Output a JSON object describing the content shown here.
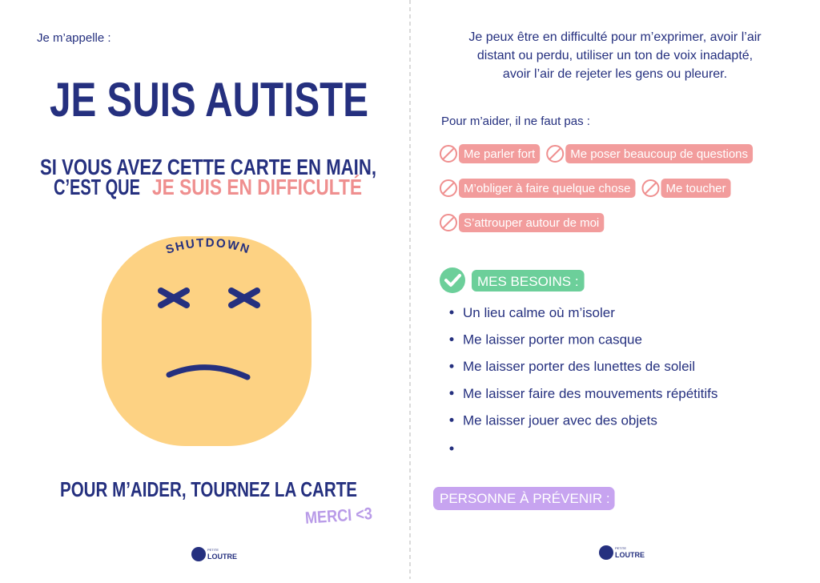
{
  "left": {
    "name_label": "Je m’appelle :",
    "title": "JE SUIS AUTISTE",
    "subtitle_line1": "SI VOUS AVEZ CETTE CARTE EN MAIN,",
    "subtitle_prefix": "C’EST QUE",
    "subtitle_highlight": "JE SUIS EN DIFFICULTÉ",
    "face_label": "SHUTDOWN",
    "footer": "POUR M’AIDER, TOURNEZ LA CARTE",
    "thanks": "MERCI <3",
    "logo": {
      "top": "PETITE",
      "bottom": "LOUTRE"
    }
  },
  "right": {
    "intro": [
      "Je peux être en difficulté pour m’exprimer, avoir l’air",
      "distant ou perdu, utiliser un ton de voix inadapté,",
      "avoir l’air de rejeter les gens ou pleurer."
    ],
    "dont_label": "Pour m’aider, il ne faut pas :",
    "dont_items": [
      "Me parler fort",
      "Me poser beaucoup de questions",
      "M’obliger à faire quelque chose",
      "Me toucher",
      "S’attrouper autour de moi"
    ],
    "needs_label": "MES BESOINS :",
    "needs": [
      "Un lieu calme où m’isoler",
      "Me laisser porter mon casque",
      "Me laisser porter des lunettes de soleil",
      "Me laisser faire des mouvements répétitifs",
      "Me laisser jouer avec des objets"
    ],
    "contact_label": "PERSONNE À PRÉVENIR :",
    "logo": {
      "top": "PETITE",
      "bottom": "LOUTRE"
    }
  }
}
